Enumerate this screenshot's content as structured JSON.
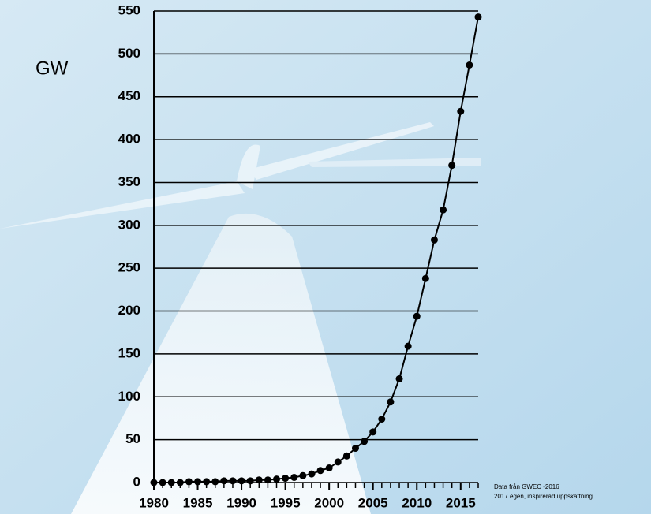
{
  "chart_data": {
    "type": "line",
    "y_label": "GW",
    "x": [
      1980,
      1981,
      1982,
      1983,
      1984,
      1985,
      1986,
      1987,
      1988,
      1989,
      1990,
      1991,
      1992,
      1993,
      1994,
      1995,
      1996,
      1997,
      1998,
      1999,
      2000,
      2001,
      2002,
      2003,
      2004,
      2005,
      2006,
      2007,
      2008,
      2009,
      2010,
      2011,
      2012,
      2013,
      2014,
      2015,
      2016,
      2017
    ],
    "series": [
      {
        "name": "GW",
        "color": "#000000",
        "values": [
          0,
          0,
          0,
          0,
          1,
          1,
          1,
          1,
          2,
          2,
          2,
          2,
          3,
          3,
          4,
          5,
          6,
          8,
          10,
          14,
          17,
          24,
          31,
          40,
          48,
          59,
          74,
          94,
          121,
          159,
          194,
          238,
          283,
          318,
          370,
          433,
          487,
          543
        ]
      }
    ],
    "xlim": [
      1980,
      2017
    ],
    "xticks": [
      1980,
      1985,
      1990,
      1995,
      2000,
      2005,
      2010,
      2015
    ],
    "ylim": [
      0,
      550
    ],
    "yticks": [
      0,
      50,
      100,
      150,
      200,
      250,
      300,
      350,
      400,
      450,
      500,
      550
    ],
    "grid": true,
    "annotations": [
      "Data från GWEC -2016",
      "2017 egen, inspirerad uppskattning"
    ]
  }
}
